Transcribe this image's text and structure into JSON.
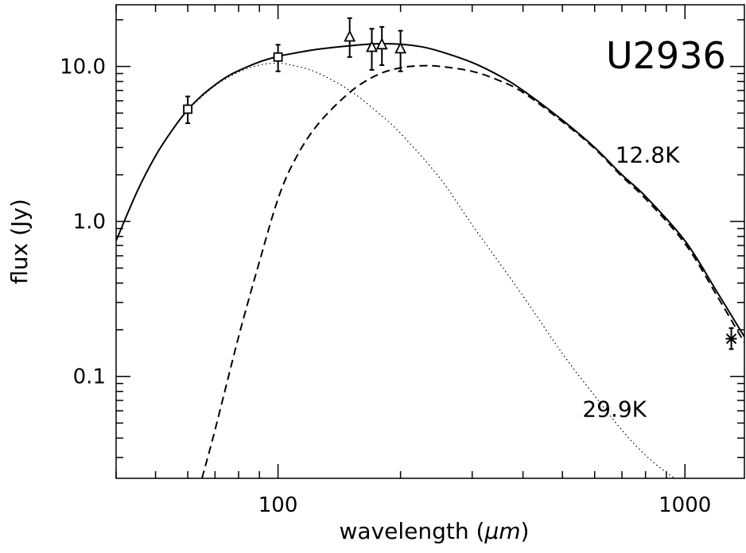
{
  "chart_data": {
    "type": "line",
    "object_label": "U2936",
    "xlabel_prefix": "wavelength (",
    "xlabel_unit": "μm",
    "xlabel_suffix": ")",
    "ylabel": "flux (Jy)",
    "x_scale": "log",
    "y_scale": "log",
    "xlim": [
      40,
      1400
    ],
    "ylim": [
      0.022,
      25
    ],
    "x_ticks": [
      {
        "value": 100,
        "label": "100"
      },
      {
        "value": 1000,
        "label": "1000"
      }
    ],
    "y_ticks": [
      {
        "value": 10,
        "label": "10.0"
      },
      {
        "value": 1,
        "label": "1.0"
      },
      {
        "value": 0.1,
        "label": "0.1"
      }
    ],
    "grid": false,
    "series": [
      {
        "style": "solid",
        "color": "#000000",
        "x": [
          40,
          45,
          50,
          55,
          60,
          65,
          70,
          75,
          80,
          90,
          100,
          110,
          125,
          150,
          175,
          200,
          225,
          250,
          300,
          350,
          400,
          500,
          600,
          700,
          800,
          1000,
          1200,
          1400
        ],
        "y": [
          0.75,
          1.55,
          2.65,
          3.9,
          5.25,
          6.5,
          7.6,
          8.6,
          9.4,
          10.7,
          11.6,
          12.2,
          12.9,
          13.6,
          14.0,
          13.9,
          13.4,
          12.5,
          10.6,
          8.7,
          7.0,
          4.5,
          3.0,
          2.0,
          1.45,
          0.75,
          0.35,
          0.18
        ]
      },
      {
        "style": "dashed",
        "color": "#000000",
        "x": [
          65,
          70,
          80,
          90,
          100,
          110,
          125,
          150,
          175,
          200,
          225,
          250,
          300,
          350,
          400,
          500,
          600,
          700,
          800,
          1000,
          1200,
          1400
        ],
        "y": [
          0.022,
          0.045,
          0.18,
          0.55,
          1.4,
          2.5,
          4.2,
          6.8,
          8.8,
          9.8,
          10.1,
          10.0,
          9.3,
          8.1,
          6.8,
          4.4,
          2.95,
          1.95,
          1.4,
          0.72,
          0.33,
          0.165
        ]
      },
      {
        "style": "dotted",
        "color": "#000000",
        "x": [
          60,
          70,
          80,
          90,
          100,
          110,
          125,
          150,
          175,
          200,
          250,
          300,
          400,
          500,
          600,
          700,
          800,
          900,
          1000
        ],
        "y": [
          5.3,
          7.5,
          9.2,
          10.2,
          10.5,
          10.1,
          9.1,
          7.0,
          5.1,
          3.7,
          1.9,
          0.95,
          0.33,
          0.14,
          0.075,
          0.045,
          0.031,
          0.024,
          0.02
        ]
      }
    ],
    "points": [
      {
        "marker": "square",
        "x": 60,
        "y": 5.3,
        "err": [
          4.3,
          6.4
        ]
      },
      {
        "marker": "square",
        "x": 100,
        "y": 11.5,
        "err": [
          9.3,
          13.8
        ]
      },
      {
        "marker": "triangle",
        "x": 150,
        "y": 15.5,
        "err": [
          11.5,
          20.5
        ]
      },
      {
        "marker": "triangle",
        "x": 170,
        "y": 13.3,
        "err": [
          9.5,
          17.5
        ]
      },
      {
        "marker": "triangle",
        "x": 180,
        "y": 13.8,
        "err": [
          10.2,
          18.0
        ]
      },
      {
        "marker": "triangle",
        "x": 200,
        "y": 13.0,
        "err": [
          9.3,
          17.0
        ]
      },
      {
        "marker": "star",
        "x": 1300,
        "y": 0.175,
        "err": [
          0.15,
          0.205
        ]
      }
    ],
    "annotations": [
      {
        "text": "12.8K",
        "x": 970,
        "y": 2.4
      },
      {
        "text": "29.9K",
        "x": 805,
        "y": 0.055
      }
    ]
  }
}
